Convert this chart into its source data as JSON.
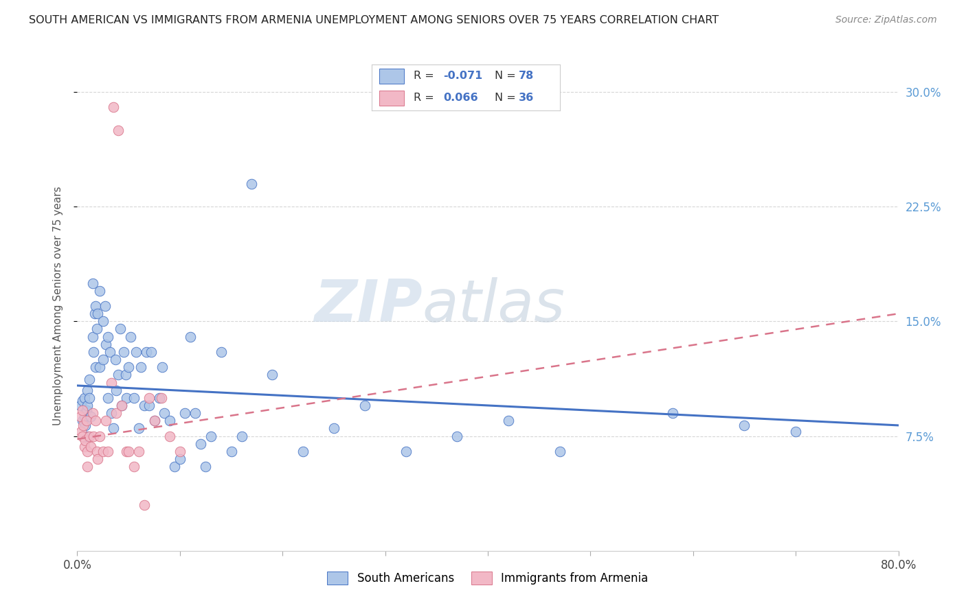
{
  "title": "SOUTH AMERICAN VS IMMIGRANTS FROM ARMENIA UNEMPLOYMENT AMONG SENIORS OVER 75 YEARS CORRELATION CHART",
  "source": "Source: ZipAtlas.com",
  "ylabel": "Unemployment Among Seniors over 75 years",
  "ytick_labels": [
    "7.5%",
    "15.0%",
    "22.5%",
    "30.0%"
  ],
  "ytick_vals": [
    0.075,
    0.15,
    0.225,
    0.3
  ],
  "xlim": [
    0.0,
    0.8
  ],
  "ylim": [
    0.0,
    0.32
  ],
  "legend1_label": "South Americans",
  "legend2_label": "Immigrants from Armenia",
  "r1": -0.071,
  "n1": 78,
  "r2": 0.066,
  "n2": 36,
  "color_blue": "#adc6e8",
  "color_pink": "#f2b8c6",
  "line_blue": "#4472c4",
  "line_pink": "#d9748a",
  "blue_line_start_y": 0.108,
  "blue_line_end_y": 0.082,
  "pink_line_start_y": 0.073,
  "pink_line_end_y": 0.155,
  "watermark_zip": "ZIP",
  "watermark_atlas": "atlas",
  "blue_x": [
    0.003,
    0.005,
    0.005,
    0.007,
    0.007,
    0.008,
    0.009,
    0.01,
    0.01,
    0.01,
    0.012,
    0.012,
    0.013,
    0.015,
    0.015,
    0.016,
    0.017,
    0.018,
    0.018,
    0.019,
    0.02,
    0.022,
    0.022,
    0.025,
    0.025,
    0.027,
    0.028,
    0.03,
    0.03,
    0.032,
    0.033,
    0.035,
    0.037,
    0.038,
    0.04,
    0.042,
    0.043,
    0.045,
    0.047,
    0.048,
    0.05,
    0.052,
    0.055,
    0.057,
    0.06,
    0.062,
    0.065,
    0.067,
    0.07,
    0.072,
    0.075,
    0.08,
    0.083,
    0.085,
    0.09,
    0.095,
    0.1,
    0.105,
    0.11,
    0.115,
    0.12,
    0.125,
    0.13,
    0.14,
    0.15,
    0.16,
    0.17,
    0.19,
    0.22,
    0.25,
    0.28,
    0.32,
    0.37,
    0.42,
    0.47,
    0.58,
    0.65,
    0.7
  ],
  "blue_y": [
    0.095,
    0.098,
    0.085,
    0.1,
    0.088,
    0.082,
    0.092,
    0.105,
    0.095,
    0.075,
    0.112,
    0.1,
    0.088,
    0.175,
    0.14,
    0.13,
    0.155,
    0.16,
    0.12,
    0.145,
    0.155,
    0.12,
    0.17,
    0.15,
    0.125,
    0.16,
    0.135,
    0.1,
    0.14,
    0.13,
    0.09,
    0.08,
    0.125,
    0.105,
    0.115,
    0.145,
    0.095,
    0.13,
    0.115,
    0.1,
    0.12,
    0.14,
    0.1,
    0.13,
    0.08,
    0.12,
    0.095,
    0.13,
    0.095,
    0.13,
    0.085,
    0.1,
    0.12,
    0.09,
    0.085,
    0.055,
    0.06,
    0.09,
    0.14,
    0.09,
    0.07,
    0.055,
    0.075,
    0.13,
    0.065,
    0.075,
    0.24,
    0.115,
    0.065,
    0.08,
    0.095,
    0.065,
    0.075,
    0.085,
    0.065,
    0.09,
    0.082,
    0.078
  ],
  "pink_x": [
    0.003,
    0.004,
    0.005,
    0.005,
    0.006,
    0.007,
    0.008,
    0.009,
    0.01,
    0.01,
    0.012,
    0.013,
    0.015,
    0.016,
    0.018,
    0.019,
    0.02,
    0.022,
    0.025,
    0.028,
    0.03,
    0.033,
    0.035,
    0.038,
    0.04,
    0.043,
    0.048,
    0.05,
    0.055,
    0.06,
    0.065,
    0.07,
    0.075,
    0.082,
    0.09,
    0.1
  ],
  "pink_y": [
    0.088,
    0.078,
    0.092,
    0.075,
    0.082,
    0.068,
    0.072,
    0.085,
    0.065,
    0.055,
    0.075,
    0.068,
    0.09,
    0.075,
    0.085,
    0.065,
    0.06,
    0.075,
    0.065,
    0.085,
    0.065,
    0.11,
    0.29,
    0.09,
    0.275,
    0.095,
    0.065,
    0.065,
    0.055,
    0.065,
    0.03,
    0.1,
    0.085,
    0.1,
    0.075,
    0.065
  ]
}
